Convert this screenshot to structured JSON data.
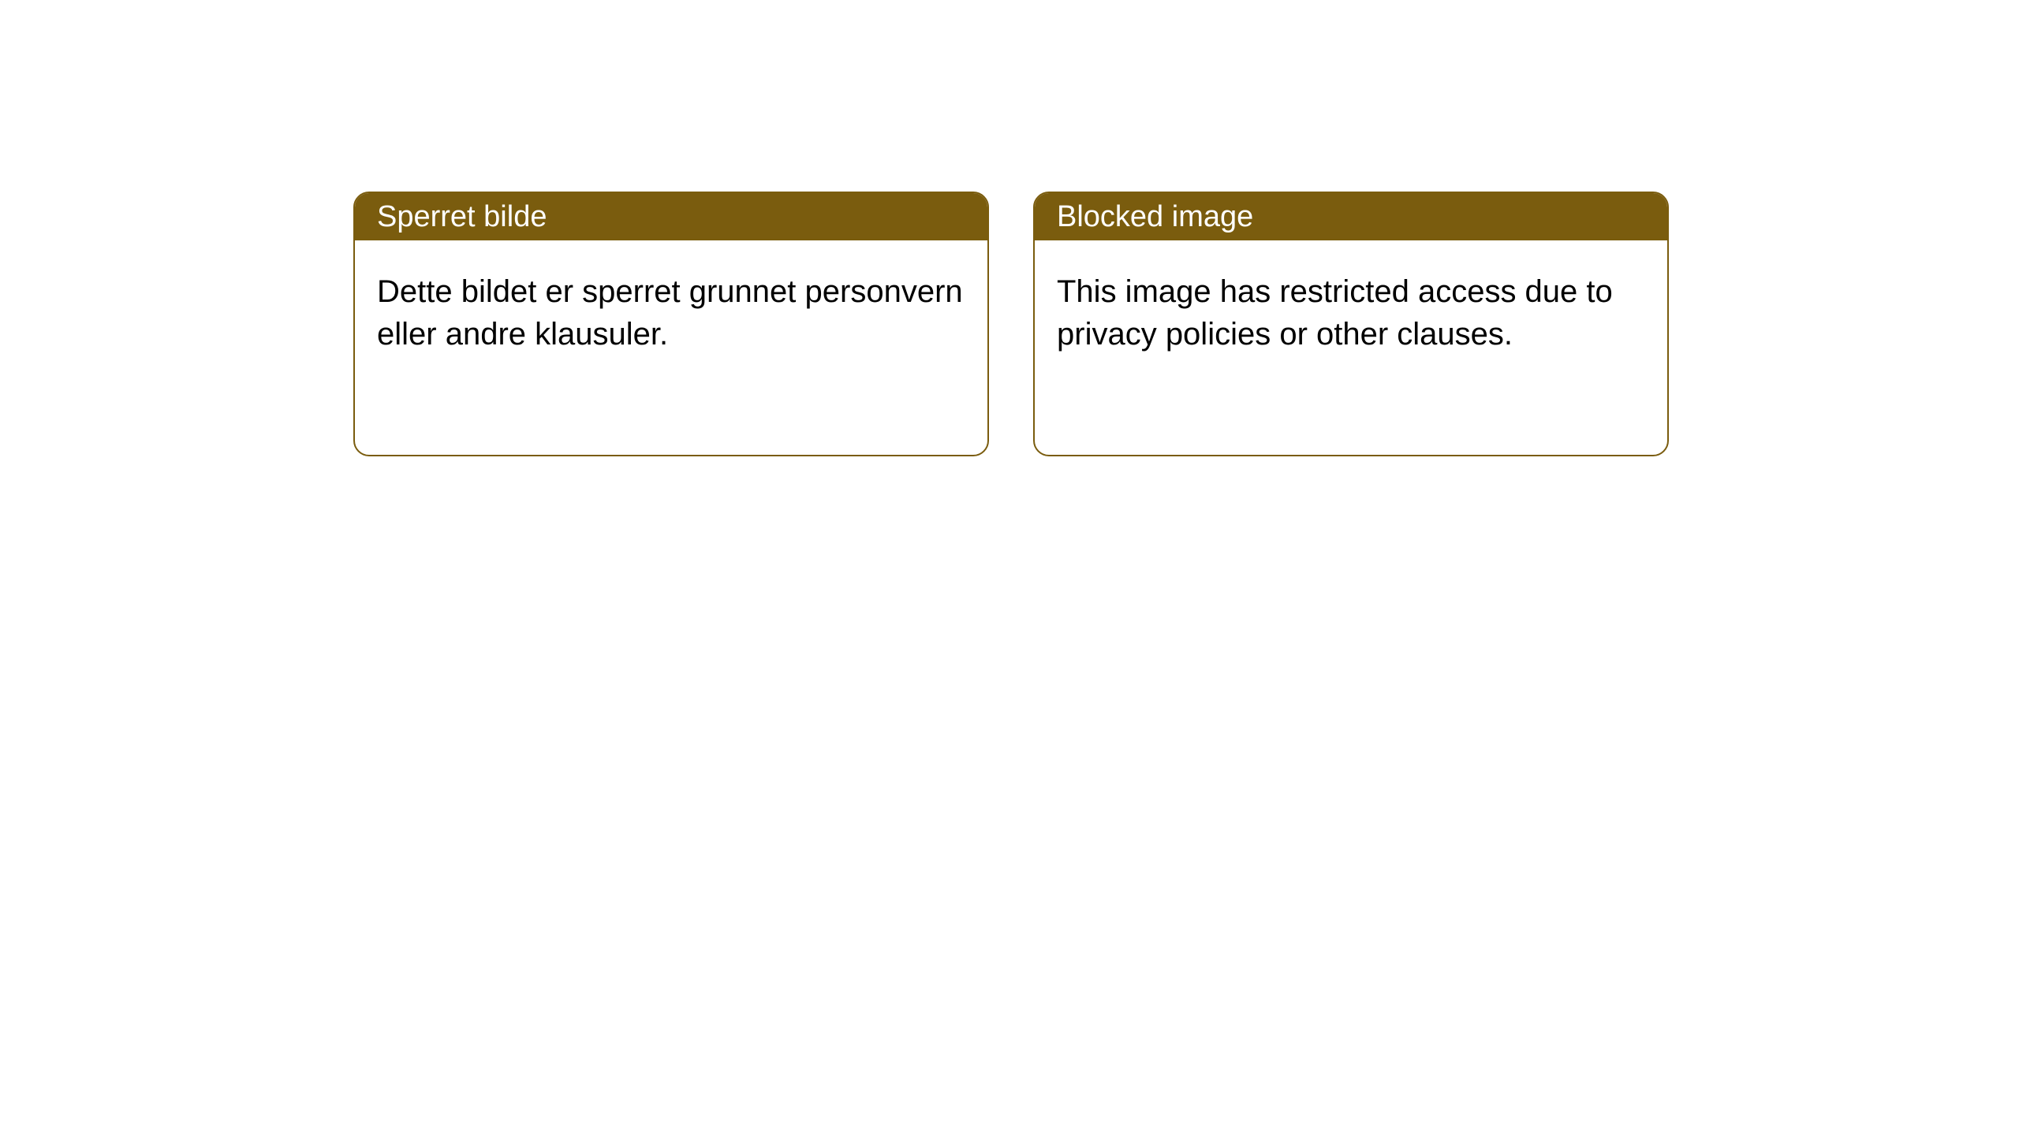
{
  "cards": [
    {
      "title": "Sperret bilde",
      "body": "Dette bildet er sperret grunnet personvern eller andre klausuler."
    },
    {
      "title": "Blocked image",
      "body": "This image has restricted access due to privacy policies or other clauses."
    }
  ],
  "style": {
    "header_bg": "#7a5c0e",
    "header_text_color": "#ffffff",
    "border_color": "#7a5c0e",
    "border_radius": 20,
    "card_bg": "#ffffff",
    "body_text_color": "#000000",
    "title_fontsize": 38,
    "body_fontsize": 40,
    "page_bg": "#ffffff"
  }
}
